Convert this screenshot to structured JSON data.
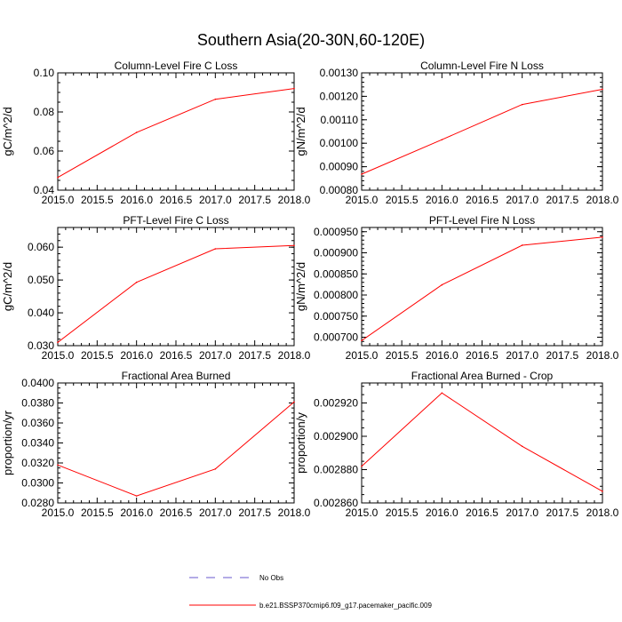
{
  "figure": {
    "title": "Southern Asia(20-30N,60-120E)"
  },
  "colors": {
    "series": "#ff0000",
    "obs": "#6a5acd",
    "axis": "#000000"
  },
  "legend": {
    "placement": "bottom-center",
    "items": [
      {
        "label": "No Obs",
        "color": "#6a5acd",
        "style": "dashed"
      },
      {
        "label": "b.e21.BSSP370cmip6.f09_g17.pacemaker_pacific.009",
        "color": "#ff0000",
        "style": "solid"
      }
    ]
  },
  "chart_data": [
    {
      "type": "line",
      "title": "Column-Level Fire C Loss",
      "xlabel": "",
      "ylabel": "gC/m^2/d",
      "x": [
        2015,
        2016,
        2017,
        2018
      ],
      "xlim": [
        2015,
        2018
      ],
      "xticks": [
        "2015.0",
        "2015.5",
        "2016.0",
        "2016.5",
        "2017.0",
        "2017.5",
        "2018.0"
      ],
      "ylim": [
        0.04,
        0.1
      ],
      "yticks": [
        "0.04",
        "0.06",
        "0.08",
        "0.10"
      ],
      "yticks_minor_step": 0.005,
      "series": [
        {
          "name": "b.e21.BSSP370cmip6.f09_g17.pacemaker_pacific.009",
          "values": [
            0.0465,
            0.0695,
            0.0865,
            0.092
          ]
        }
      ]
    },
    {
      "type": "line",
      "title": "Column-Level Fire N Loss",
      "xlabel": "",
      "ylabel": "gN/m^2/d",
      "x": [
        2015,
        2016,
        2017,
        2018
      ],
      "xlim": [
        2015,
        2018
      ],
      "xticks": [
        "2015.0",
        "2015.5",
        "2016.0",
        "2016.5",
        "2017.0",
        "2017.5",
        "2018.0"
      ],
      "ylim": [
        0.0008,
        0.0013
      ],
      "yticks": [
        "0.00080",
        "0.00090",
        "0.00100",
        "0.00110",
        "0.00120",
        "0.00130"
      ],
      "yticks_minor_step": 2e-05,
      "series": [
        {
          "name": "b.e21.BSSP370cmip6.f09_g17.pacemaker_pacific.009",
          "values": [
            0.000868,
            0.001015,
            0.001165,
            0.00123
          ]
        }
      ]
    },
    {
      "type": "line",
      "title": "PFT-Level Fire C Loss",
      "xlabel": "",
      "ylabel": "gC/m^2/d",
      "x": [
        2015,
        2016,
        2017,
        2018
      ],
      "xlim": [
        2015,
        2018
      ],
      "xticks": [
        "2015.0",
        "2015.5",
        "2016.0",
        "2016.5",
        "2017.0",
        "2017.5",
        "2018.0"
      ],
      "ylim": [
        0.03,
        0.066
      ],
      "yticks": [
        "0.030",
        "0.040",
        "0.050",
        "0.060"
      ],
      "yticks_minor_step": 0.002,
      "series": [
        {
          "name": "b.e21.BSSP370cmip6.f09_g17.pacemaker_pacific.009",
          "values": [
            0.031,
            0.0493,
            0.0595,
            0.0605
          ]
        }
      ]
    },
    {
      "type": "line",
      "title": "PFT-Level Fire N Loss",
      "xlabel": "",
      "ylabel": "gN/m^2/d",
      "x": [
        2015,
        2016,
        2017,
        2018
      ],
      "xlim": [
        2015,
        2018
      ],
      "xticks": [
        "2015.0",
        "2015.5",
        "2016.0",
        "2016.5",
        "2017.0",
        "2017.5",
        "2018.0"
      ],
      "ylim": [
        0.00068,
        0.00096
      ],
      "yticks": [
        "0.000700",
        "0.000750",
        "0.000800",
        "0.000850",
        "0.000900",
        "0.000950"
      ],
      "yticks_minor_step": 1e-05,
      "series": [
        {
          "name": "b.e21.BSSP370cmip6.f09_g17.pacemaker_pacific.009",
          "values": [
            0.000692,
            0.000824,
            0.000918,
            0.000937
          ]
        }
      ]
    },
    {
      "type": "line",
      "title": "Fractional Area Burned",
      "xlabel": "",
      "ylabel": "proportion/yr",
      "x": [
        2015,
        2016,
        2017,
        2018
      ],
      "xlim": [
        2015,
        2018
      ],
      "xticks": [
        "2015.0",
        "2015.5",
        "2016.0",
        "2016.5",
        "2017.0",
        "2017.5",
        "2018.0"
      ],
      "ylim": [
        0.028,
        0.04
      ],
      "yticks": [
        "0.0280",
        "0.0300",
        "0.0320",
        "0.0340",
        "0.0360",
        "0.0380",
        "0.0400"
      ],
      "yticks_minor_step": 0.0005,
      "series": [
        {
          "name": "b.e21.BSSP370cmip6.f09_g17.pacemaker_pacific.009",
          "values": [
            0.0318,
            0.0287,
            0.0314,
            0.0381
          ]
        }
      ]
    },
    {
      "type": "line",
      "title": "Fractional Area Burned - Crop",
      "xlabel": "",
      "ylabel": "proportion/y",
      "x": [
        2015,
        2016,
        2017,
        2018
      ],
      "xlim": [
        2015,
        2018
      ],
      "xticks": [
        "2015.0",
        "2015.5",
        "2016.0",
        "2016.5",
        "2017.0",
        "2017.5",
        "2018.0"
      ],
      "ylim": [
        0.00286,
        0.002932
      ],
      "yticks": [
        "0.002860",
        "0.002880",
        "0.002900",
        "0.002920"
      ],
      "yticks_minor_step": 5e-06,
      "series": [
        {
          "name": "b.e21.BSSP370cmip6.f09_g17.pacemaker_pacific.009",
          "values": [
            0.002882,
            0.002926,
            0.002894,
            0.002867
          ]
        }
      ]
    }
  ]
}
